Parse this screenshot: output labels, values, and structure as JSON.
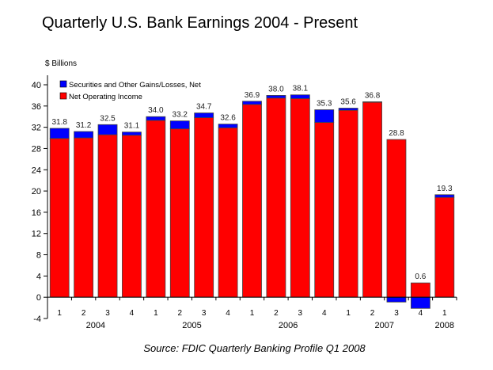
{
  "chart_data": {
    "type": "bar",
    "stacked": true,
    "title": "Quarterly U.S. Bank Earnings 2004 - Present",
    "ylabel": "$ Billions",
    "source": "Source:  FDIC Quarterly Banking Profile Q1 2008",
    "ylim": [
      -4,
      40
    ],
    "yticks": [
      -4,
      0,
      4,
      8,
      12,
      16,
      20,
      24,
      28,
      32,
      36,
      40
    ],
    "grid": false,
    "legend_position": "top-left",
    "categories": [
      "1",
      "2",
      "3",
      "4",
      "1",
      "2",
      "3",
      "4",
      "1",
      "2",
      "3",
      "4",
      "1",
      "2",
      "3",
      "4",
      "1"
    ],
    "years": [
      {
        "label": "2004",
        "from": 0,
        "to": 3
      },
      {
        "label": "2005",
        "from": 4,
        "to": 7
      },
      {
        "label": "2006",
        "from": 8,
        "to": 11
      },
      {
        "label": "2007",
        "from": 12,
        "to": 15
      },
      {
        "label": "2008",
        "from": 16,
        "to": 16
      }
    ],
    "series": [
      {
        "name": "Net Operating Income",
        "color": "#ff0000",
        "values": [
          29.9,
          30.0,
          30.6,
          30.5,
          33.3,
          31.7,
          33.8,
          31.9,
          36.3,
          37.5,
          37.4,
          32.9,
          35.2,
          36.7,
          29.7,
          2.7,
          18.8
        ]
      },
      {
        "name": "Securities and Other Gains/Losses, Net",
        "color": "#0000ff",
        "values": [
          1.9,
          1.2,
          1.9,
          0.6,
          0.7,
          1.5,
          0.9,
          0.7,
          0.6,
          0.5,
          0.7,
          2.4,
          0.4,
          0.1,
          -0.9,
          -2.1,
          0.5
        ]
      }
    ],
    "totals": [
      "31.8",
      "31.2",
      "32.5",
      "31.1",
      "34.0",
      "33.2",
      "34.7",
      "32.6",
      "36.9",
      "38.0",
      "38.1",
      "35.3",
      "35.6",
      "36.8",
      "28.8",
      "0.6",
      "19.3"
    ]
  }
}
